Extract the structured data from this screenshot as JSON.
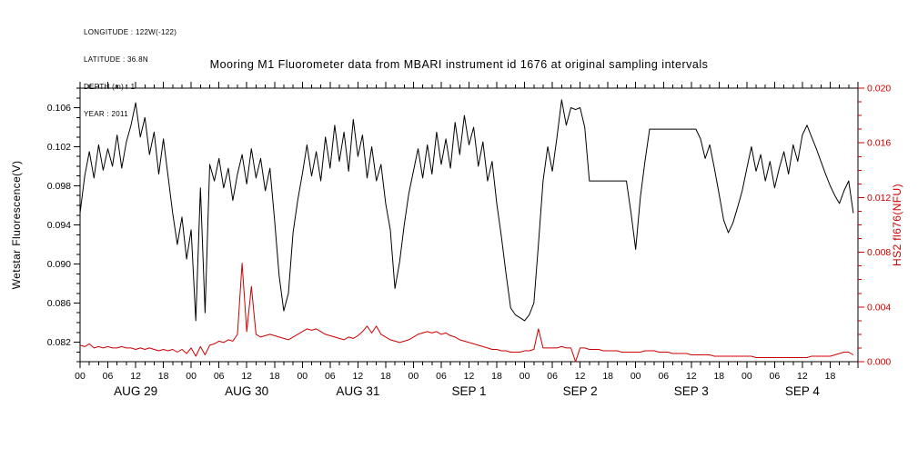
{
  "header": {
    "metadata_lines": [
      "LONGITUDE : 122W(-122)",
      "LATITUDE : 36.8N",
      "DEPTH (m) : 1",
      "YEAR : 2011"
    ],
    "title": "Mooring M1 Fluorometer data from MBARI instrument id 1676 at original sampling intervals"
  },
  "chart_data": {
    "type": "line",
    "title": "Mooring M1 Fluorometer data from MBARI instrument id 1676 at original sampling intervals",
    "x": {
      "range_hours": [
        0,
        168
      ],
      "major_tick_hours": 6,
      "minor_tick_hours": 2,
      "hour_label_format": "00 06 12 18 repeated per day",
      "day_labels": [
        "AUG 29",
        "AUG 30",
        "AUG 31",
        "SEP 1",
        "SEP 2",
        "SEP 3",
        "SEP 4"
      ]
    },
    "left_axis": {
      "label": "Wetstar Fluorescence(V)",
      "min": 0.08,
      "max": 0.108,
      "major_ticks": [
        0.082,
        0.086,
        0.09,
        0.094,
        0.098,
        0.102,
        0.106
      ],
      "minor_step": 0.001,
      "color": "#000000"
    },
    "right_axis": {
      "label": "HS2 fl676(NFU)",
      "min": 0.0,
      "max": 0.02,
      "major_ticks": [
        0.0,
        0.004,
        0.008,
        0.012,
        0.016,
        0.02
      ],
      "minor_step": 0.001,
      "color": "#cc0000"
    },
    "legend": "none",
    "grid": false,
    "series": [
      {
        "id": "wetstar",
        "name": "Wetstar Fluorescence(V)",
        "axis": "left",
        "color": "#000000",
        "x_step_hours": 1,
        "values": [
          0.0952,
          0.099,
          0.1015,
          0.0988,
          0.1022,
          0.0996,
          0.1018,
          0.1,
          0.1032,
          0.0998,
          0.1025,
          0.1042,
          0.1065,
          0.103,
          0.105,
          0.1012,
          0.1035,
          0.0992,
          0.1028,
          0.099,
          0.0952,
          0.092,
          0.0948,
          0.0905,
          0.0935,
          0.0842,
          0.0978,
          0.085,
          0.1002,
          0.0985,
          0.1008,
          0.0978,
          0.0998,
          0.0965,
          0.0992,
          0.1012,
          0.0982,
          0.1018,
          0.0988,
          0.1008,
          0.0975,
          0.0998,
          0.0945,
          0.0888,
          0.0852,
          0.087,
          0.0932,
          0.0965,
          0.0992,
          0.1022,
          0.099,
          0.1015,
          0.0985,
          0.103,
          0.0998,
          0.1042,
          0.1005,
          0.1035,
          0.0995,
          0.1048,
          0.101,
          0.1032,
          0.0988,
          0.102,
          0.0985,
          0.1002,
          0.0962,
          0.0935,
          0.0875,
          0.0902,
          0.094,
          0.0972,
          0.0995,
          0.1018,
          0.0988,
          0.1022,
          0.0992,
          0.1035,
          0.1002,
          0.1028,
          0.0998,
          0.1045,
          0.1012,
          0.1052,
          0.1022,
          0.104,
          0.1,
          0.1025,
          0.0985,
          0.1005,
          0.0962,
          0.0928,
          0.089,
          0.0855,
          0.0848,
          0.0845,
          0.0842,
          0.0848,
          0.086,
          0.092,
          0.0985,
          0.102,
          0.0995,
          0.103,
          0.1068,
          0.1042,
          0.106,
          0.1058,
          0.106,
          0.104,
          0.0985,
          0.0985,
          0.0985,
          0.0985,
          0.0985,
          0.0985,
          0.0985,
          0.0985,
          0.0985,
          0.0952,
          0.0915,
          0.0968,
          0.1005,
          0.1038,
          0.1038,
          0.1038,
          0.1038,
          0.1038,
          0.1038,
          0.1038,
          0.1038,
          0.1038,
          0.1038,
          0.1038,
          0.1028,
          0.1008,
          0.1022,
          0.0998,
          0.0972,
          0.0945,
          0.0932,
          0.0942,
          0.0958,
          0.0975,
          0.0998,
          0.102,
          0.0995,
          0.1012,
          0.0985,
          0.1005,
          0.0978,
          0.0998,
          0.1015,
          0.0992,
          0.1022,
          0.1005,
          0.1032,
          0.1042,
          0.103,
          0.1018,
          0.1005,
          0.0992,
          0.098,
          0.097,
          0.0962,
          0.0975,
          0.0985,
          0.0952
        ]
      },
      {
        "id": "hs2",
        "name": "HS2 fl676(NFU)",
        "axis": "right",
        "color": "#cc0000",
        "x_step_hours": 1,
        "values": [
          0.0012,
          0.0011,
          0.0013,
          0.001,
          0.0011,
          0.001,
          0.0011,
          0.001,
          0.001,
          0.0011,
          0.001,
          0.001,
          0.0009,
          0.001,
          0.0009,
          0.001,
          0.0009,
          0.0008,
          0.0009,
          0.0008,
          0.0009,
          0.0007,
          0.0009,
          0.0006,
          0.001,
          0.0004,
          0.0011,
          0.0005,
          0.0012,
          0.0013,
          0.0015,
          0.0014,
          0.0016,
          0.0015,
          0.002,
          0.0072,
          0.0022,
          0.0055,
          0.002,
          0.0018,
          0.0019,
          0.002,
          0.0019,
          0.0018,
          0.0017,
          0.0016,
          0.0018,
          0.002,
          0.0022,
          0.0024,
          0.0023,
          0.0024,
          0.0022,
          0.002,
          0.0019,
          0.0018,
          0.0017,
          0.0016,
          0.0018,
          0.0017,
          0.0019,
          0.0022,
          0.0026,
          0.0021,
          0.0026,
          0.002,
          0.0018,
          0.0016,
          0.0015,
          0.0014,
          0.0015,
          0.0016,
          0.0018,
          0.002,
          0.0021,
          0.0022,
          0.0021,
          0.0022,
          0.002,
          0.0021,
          0.0019,
          0.0018,
          0.0016,
          0.0015,
          0.0014,
          0.0013,
          0.0012,
          0.0011,
          0.001,
          0.0009,
          0.0009,
          0.0008,
          0.0008,
          0.0007,
          0.0007,
          0.0007,
          0.0008,
          0.0008,
          0.0009,
          0.0024,
          0.001,
          0.001,
          0.001,
          0.001,
          0.0011,
          0.001,
          0.001,
          0.0,
          0.001,
          0.001,
          0.0009,
          0.0009,
          0.0009,
          0.0008,
          0.0008,
          0.0008,
          0.0008,
          0.0007,
          0.0007,
          0.0007,
          0.0007,
          0.0007,
          0.0008,
          0.0008,
          0.0008,
          0.0007,
          0.0007,
          0.0007,
          0.0006,
          0.0006,
          0.0006,
          0.0006,
          0.0005,
          0.0005,
          0.0005,
          0.0005,
          0.0005,
          0.0004,
          0.0004,
          0.0004,
          0.0004,
          0.0004,
          0.0004,
          0.0004,
          0.0004,
          0.0004,
          0.0003,
          0.0003,
          0.0003,
          0.0003,
          0.0003,
          0.0003,
          0.0003,
          0.0003,
          0.0003,
          0.0003,
          0.0003,
          0.0003,
          0.0004,
          0.0004,
          0.0004,
          0.0004,
          0.0004,
          0.0005,
          0.0006,
          0.0007,
          0.0007,
          0.0005
        ]
      }
    ]
  }
}
